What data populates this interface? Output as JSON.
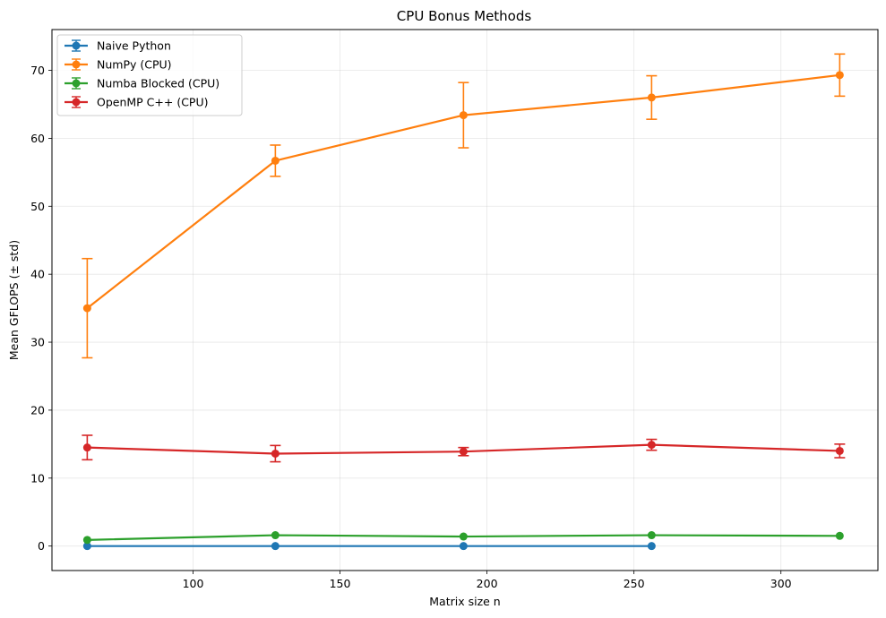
{
  "chart_data": {
    "type": "line",
    "title": "CPU Bonus Methods",
    "xlabel": "Matrix size n",
    "ylabel": "Mean GFLOPS (± std)",
    "xlim": [
      52,
      333
    ],
    "ylim": [
      -3.6,
      76
    ],
    "xticks": [
      100,
      150,
      200,
      250,
      300
    ],
    "yticks": [
      0,
      10,
      20,
      30,
      40,
      50,
      60,
      70
    ],
    "grid": true,
    "legend_position": "top-left",
    "series": [
      {
        "name": "Naive Python",
        "color": "#1f77b4",
        "points": [
          {
            "x": 64,
            "y": 0.0,
            "err": 0.0
          },
          {
            "x": 128,
            "y": 0.0,
            "err": 0.0
          },
          {
            "x": 192,
            "y": 0.0,
            "err": 0.0
          },
          {
            "x": 256,
            "y": 0.0,
            "err": 0.0
          }
        ]
      },
      {
        "name": "NumPy (CPU)",
        "color": "#ff7f0e",
        "points": [
          {
            "x": 64,
            "y": 35.0,
            "err": 7.3
          },
          {
            "x": 128,
            "y": 56.7,
            "err": 2.3
          },
          {
            "x": 192,
            "y": 63.4,
            "err": 4.8
          },
          {
            "x": 256,
            "y": 66.0,
            "err": 3.2
          },
          {
            "x": 320,
            "y": 69.3,
            "err": 3.1
          }
        ]
      },
      {
        "name": "Numba Blocked (CPU)",
        "color": "#2ca02c",
        "points": [
          {
            "x": 64,
            "y": 0.9,
            "err": 0.0
          },
          {
            "x": 128,
            "y": 1.6,
            "err": 0.0
          },
          {
            "x": 192,
            "y": 1.4,
            "err": 0.0
          },
          {
            "x": 256,
            "y": 1.6,
            "err": 0.0
          },
          {
            "x": 320,
            "y": 1.5,
            "err": 0.0
          }
        ]
      },
      {
        "name": "OpenMP C++ (CPU)",
        "color": "#d62728",
        "points": [
          {
            "x": 64,
            "y": 14.5,
            "err": 1.8
          },
          {
            "x": 128,
            "y": 13.6,
            "err": 1.2
          },
          {
            "x": 192,
            "y": 13.9,
            "err": 0.6
          },
          {
            "x": 256,
            "y": 14.9,
            "err": 0.8
          },
          {
            "x": 320,
            "y": 14.0,
            "err": 1.0
          }
        ]
      }
    ]
  }
}
